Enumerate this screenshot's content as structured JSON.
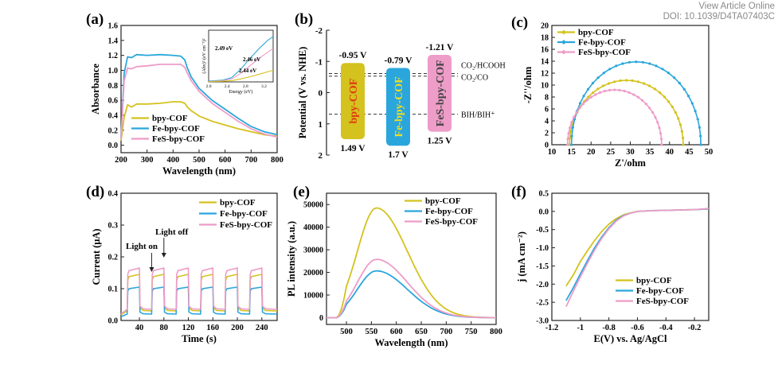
{
  "header": {
    "line1": "View Article Online",
    "line2": "DOI: 10.1039/D4TA07403C"
  },
  "colors": {
    "bpy": "#d4c21e",
    "fe": "#2aa6dc",
    "fes": "#ee9cc8",
    "axis": "#222222",
    "dash": "#333333"
  },
  "chart_data": [
    {
      "panel_label": "(a)",
      "type": "line",
      "xlabel": "Wavelength (nm)",
      "ylabel": "Absorbance",
      "xlim": [
        200,
        800
      ],
      "ylim": [
        -0.1,
        1.6
      ],
      "xticks": [
        200,
        300,
        400,
        500,
        600,
        700,
        800
      ],
      "yticks": [
        0.0,
        0.2,
        0.4,
        0.6,
        0.8,
        1.0,
        1.2,
        1.4,
        1.6
      ],
      "tick_decimals": 1,
      "legend": {
        "position": "bottom-left",
        "entries": [
          "bpy-COF",
          "Fe-bpy-COF",
          "FeS-bpy-COF"
        ]
      },
      "series": [
        {
          "name": "bpy-COF",
          "color_key": "bpy",
          "x": [
            200,
            212,
            225,
            240,
            260,
            300,
            350,
            400,
            430,
            445,
            455,
            470,
            500,
            550,
            600,
            650,
            700,
            750,
            800
          ],
          "y": [
            0.06,
            0.37,
            0.54,
            0.51,
            0.55,
            0.55,
            0.56,
            0.58,
            0.58,
            0.56,
            0.51,
            0.46,
            0.39,
            0.32,
            0.27,
            0.22,
            0.18,
            0.14,
            0.12
          ]
        },
        {
          "name": "Fe-bpy-COF",
          "color_key": "fe",
          "x": [
            200,
            212,
            225,
            240,
            260,
            300,
            350,
            400,
            430,
            445,
            455,
            470,
            500,
            550,
            600,
            650,
            700,
            750,
            800
          ],
          "y": [
            0.1,
            0.96,
            1.18,
            1.17,
            1.21,
            1.2,
            1.21,
            1.2,
            1.19,
            1.14,
            1.03,
            0.91,
            0.76,
            0.6,
            0.48,
            0.36,
            0.25,
            0.18,
            0.14
          ]
        },
        {
          "name": "FeS-bpy-COF",
          "color_key": "fes",
          "x": [
            200,
            212,
            225,
            240,
            260,
            300,
            350,
            400,
            430,
            445,
            455,
            470,
            500,
            550,
            600,
            650,
            700,
            750,
            800
          ],
          "y": [
            0.08,
            0.86,
            1.03,
            1.02,
            1.05,
            1.06,
            1.08,
            1.08,
            1.08,
            1.04,
            0.96,
            0.86,
            0.72,
            0.56,
            0.44,
            0.32,
            0.22,
            0.15,
            0.11
          ]
        }
      ],
      "inset": {
        "xlabel": "Energy (eV)",
        "ylabel": "(Ahv)² (eV cm⁻¹)²",
        "xlim": [
          2.0,
          3.4
        ],
        "ylim": [
          0,
          120
        ],
        "xticks": [
          2.0,
          2.4,
          2.8,
          3.2
        ],
        "annotations": [
          "2.49 eV",
          "2.46 eV",
          "2.44 eV"
        ],
        "series": [
          {
            "color_key": "fe",
            "x": [
              2.0,
              2.3,
              2.5,
              2.7,
              2.9,
              3.1,
              3.3,
              3.4
            ],
            "y": [
              2,
              4,
              10,
              30,
              55,
              78,
              98,
              105
            ]
          },
          {
            "color_key": "fes",
            "x": [
              2.0,
              2.3,
              2.5,
              2.7,
              2.9,
              3.1,
              3.3,
              3.4
            ],
            "y": [
              1,
              3,
              7,
              20,
              38,
              55,
              70,
              78
            ]
          },
          {
            "color_key": "bpy",
            "x": [
              2.0,
              2.3,
              2.5,
              2.7,
              2.9,
              3.1,
              3.3,
              3.4
            ],
            "y": [
              0.5,
              1.5,
              3,
              7,
              12,
              18,
              24,
              27
            ]
          }
        ]
      }
    },
    {
      "panel_label": "(b)",
      "type": "diagram",
      "ylabel": "Potential (V vs. NHE)",
      "ylim": [
        -2,
        2
      ],
      "yticks": [
        -2,
        -1,
        0,
        1,
        2
      ],
      "tick_decimals": 0,
      "bands": [
        {
          "name": "bpy-COF",
          "color_key": "bpy",
          "cb": -0.95,
          "vb": 1.49,
          "cb_label": "-0.95 V",
          "vb_label": "1.49 V",
          "text_color": "#e03a10"
        },
        {
          "name": "Fe-bpy-COF",
          "color_key": "fe",
          "cb": -0.79,
          "vb": 1.7,
          "cb_label": "-0.79 V",
          "vb_label": "1.7 V",
          "text_color": "#f0dd23"
        },
        {
          "name": "FeS-bpy-COF",
          "color_key": "fes",
          "cb": -1.21,
          "vb": 1.25,
          "cb_label": "-1.21 V",
          "vb_label": "1.25 V",
          "text_color": "#444444"
        }
      ],
      "levels": [
        {
          "label": "CO₂/HCOOH",
          "value": -0.61
        },
        {
          "label": "CO₂/CO",
          "value": -0.53
        },
        {
          "label": "BIH/BIH⁺",
          "value": 0.69
        }
      ]
    },
    {
      "panel_label": "(c)",
      "type": "scatter",
      "xlabel": "Z'/ohm",
      "ylabel": "-Z''/ohm",
      "xlim": [
        10,
        50
      ],
      "ylim": [
        0,
        20
      ],
      "xticks": [
        10,
        15,
        20,
        25,
        30,
        35,
        40,
        45,
        50
      ],
      "yticks": [
        0,
        2,
        4,
        6,
        8,
        10,
        12,
        14,
        16,
        18,
        20
      ],
      "tick_decimals": 0,
      "legend": {
        "position": "top-left",
        "entries": [
          "bpy-COF",
          "Fe-bpy-COF",
          "FeS-bpy-COF"
        ]
      },
      "series": [
        {
          "name": "bpy-COF",
          "color_key": "bpy",
          "arc": [
            14.5,
            43.5,
            10.8
          ]
        },
        {
          "name": "Fe-bpy-COF",
          "color_key": "fe",
          "arc": [
            15.0,
            48.0,
            13.9
          ]
        },
        {
          "name": "FeS-bpy-COF",
          "color_key": "fes",
          "arc": [
            14.0,
            38.0,
            9.2
          ]
        }
      ]
    },
    {
      "panel_label": "(d)",
      "type": "line",
      "xlabel": "Time (s)",
      "ylabel": "Current (μA)",
      "xlim": [
        10,
        265
      ],
      "ylim": [
        0,
        0.4
      ],
      "xticks": [
        40,
        80,
        120,
        160,
        200,
        240
      ],
      "yticks": [
        0.0,
        0.1,
        0.2,
        0.3,
        0.4
      ],
      "tick_decimals": 1,
      "legend": {
        "position": "top-right",
        "entries": [
          "bpy-COF",
          "Fe-bpy-COF",
          "FeS-bpy-COF"
        ]
      },
      "annotations": [
        "Light on",
        "Light off"
      ],
      "on_periods": [
        [
          20,
          40
        ],
        [
          60,
          80
        ],
        [
          100,
          120
        ],
        [
          140,
          160
        ],
        [
          180,
          200
        ],
        [
          220,
          240
        ]
      ],
      "series": [
        {
          "name": "bpy-COF",
          "color_key": "bpy",
          "on": 0.145,
          "off": 0.03
        },
        {
          "name": "Fe-bpy-COF",
          "color_key": "fe",
          "on": 0.105,
          "off": 0.02
        },
        {
          "name": "FeS-bpy-COF",
          "color_key": "fes",
          "on": 0.165,
          "off": 0.035
        }
      ]
    },
    {
      "panel_label": "(e)",
      "type": "line",
      "xlabel": "Wavelength (nm)",
      "ylabel": "PL intensity (a.u.)",
      "xlim": [
        460,
        800
      ],
      "ylim": [
        -3000,
        55000
      ],
      "xticks": [
        500,
        550,
        600,
        650,
        700,
        750,
        800
      ],
      "yticks": [
        0,
        10000,
        20000,
        30000,
        40000,
        50000
      ],
      "tick_decimals": 0,
      "legend": {
        "position": "top-right",
        "entries": [
          "bpy-COF",
          "Fe-bpy-COF",
          "FeS-bpy-COF"
        ]
      },
      "series": [
        {
          "name": "bpy-COF",
          "color_key": "bpy",
          "peak": 48500
        },
        {
          "name": "Fe-bpy-COF",
          "color_key": "fe",
          "peak": 20700
        },
        {
          "name": "FeS-bpy-COF",
          "color_key": "fes",
          "peak": 25800
        }
      ]
    },
    {
      "panel_label": "(f)",
      "type": "line",
      "xlabel": "E(V) vs. Ag/AgCl",
      "ylabel": "j (mA cm⁻²)",
      "xlim": [
        -1.2,
        -0.1
      ],
      "ylim": [
        -3.0,
        0.5
      ],
      "xticks": [
        -1.2,
        -1.0,
        -0.8,
        -0.6,
        -0.4,
        -0.2
      ],
      "yticks": [
        -3.0,
        -2.5,
        -2.0,
        -1.5,
        -1.0,
        -0.5,
        0.0,
        0.5
      ],
      "tick_decimals": 1,
      "legend": {
        "position": "bottom-right",
        "entries": [
          "bpy-COF",
          "Fe-bpy-COF",
          "FeS-bpy-COF"
        ]
      },
      "series": [
        {
          "name": "bpy-COF",
          "color_key": "bpy",
          "x": [
            -1.1,
            -1.05,
            -1.0,
            -0.95,
            -0.9,
            -0.85,
            -0.8,
            -0.75,
            -0.7,
            -0.65,
            -0.6,
            -0.5,
            -0.4,
            -0.3,
            -0.2,
            -0.1
          ],
          "y": [
            -2.05,
            -1.75,
            -1.38,
            -1.08,
            -0.8,
            -0.55,
            -0.35,
            -0.2,
            -0.1,
            -0.04,
            0.0,
            0.02,
            0.03,
            0.04,
            0.05,
            0.07
          ]
        },
        {
          "name": "Fe-bpy-COF",
          "color_key": "fe",
          "x": [
            -1.1,
            -1.05,
            -1.0,
            -0.95,
            -0.9,
            -0.85,
            -0.8,
            -0.75,
            -0.7,
            -0.65,
            -0.6,
            -0.5,
            -0.4,
            -0.3,
            -0.2,
            -0.1
          ],
          "y": [
            -2.45,
            -2.1,
            -1.72,
            -1.35,
            -1.0,
            -0.7,
            -0.45,
            -0.25,
            -0.12,
            -0.05,
            0.0,
            0.02,
            0.03,
            0.04,
            0.05,
            0.07
          ]
        },
        {
          "name": "FeS-bpy-COF",
          "color_key": "fes",
          "x": [
            -1.1,
            -1.05,
            -1.0,
            -0.95,
            -0.9,
            -0.85,
            -0.8,
            -0.75,
            -0.7,
            -0.65,
            -0.6,
            -0.5,
            -0.4,
            -0.3,
            -0.2,
            -0.1
          ],
          "y": [
            -2.62,
            -2.2,
            -1.8,
            -1.42,
            -1.06,
            -0.74,
            -0.48,
            -0.27,
            -0.13,
            -0.05,
            0.0,
            0.02,
            0.03,
            0.04,
            0.05,
            0.08
          ]
        }
      ]
    }
  ]
}
